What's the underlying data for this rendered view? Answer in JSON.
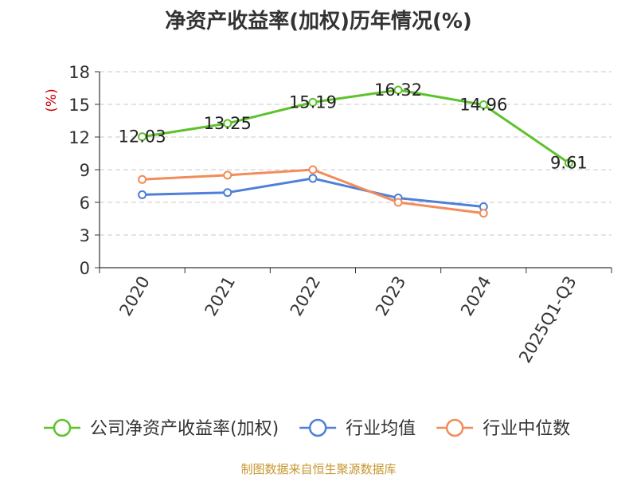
{
  "chart_data": {
    "type": "line",
    "title": "净资产收益率(加权)历年情况(%)",
    "ylabel": "(%)",
    "xlabel": "",
    "categories": [
      "2020",
      "2021",
      "2022",
      "2023",
      "2024",
      "2025Q1-Q3"
    ],
    "ylim": [
      0,
      18
    ],
    "yticks": [
      0,
      3,
      6,
      9,
      12,
      15,
      18
    ],
    "grid": true,
    "legend_position": "bottom",
    "series": [
      {
        "name": "公司净资产收益率(加权)",
        "color": "#5ec22d",
        "values": [
          12.03,
          13.25,
          15.19,
          16.32,
          14.96,
          9.61
        ],
        "show_labels": true
      },
      {
        "name": "行业均值",
        "color": "#4f7fd8",
        "values": [
          6.7,
          6.9,
          8.2,
          6.4,
          5.6,
          null
        ],
        "show_labels": false
      },
      {
        "name": "行业中位数",
        "color": "#f28c5a",
        "values": [
          8.1,
          8.5,
          9.0,
          6.0,
          5.0,
          null
        ],
        "show_labels": false
      }
    ]
  },
  "footer": {
    "source": "制图数据来自恒生聚源数据库"
  }
}
